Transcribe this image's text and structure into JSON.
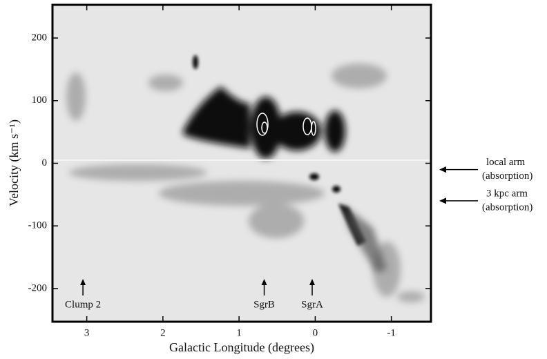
{
  "chart_data": {
    "type": "image",
    "xlabel": "Galactic Longitude (degrees)",
    "ylabel": "Velocity (km s⁻¹)",
    "xlim": [
      3.45,
      -1.52
    ],
    "ylim": [
      -253,
      253
    ],
    "xticks": [
      3,
      2,
      1,
      0,
      -1
    ],
    "yticks": [
      -200,
      -100,
      0,
      100,
      200
    ],
    "annotations": [
      {
        "text": "Clump 2",
        "x": 3.05
      },
      {
        "text": "SgrB",
        "x": 0.67
      },
      {
        "text": "SgrA",
        "x": 0.04
      }
    ],
    "side_annotations": [
      {
        "lines": [
          "local arm",
          "(absorption)"
        ],
        "y": -10
      },
      {
        "lines": [
          "3 kpc arm",
          "(absorption)"
        ],
        "y": -60
      }
    ]
  }
}
